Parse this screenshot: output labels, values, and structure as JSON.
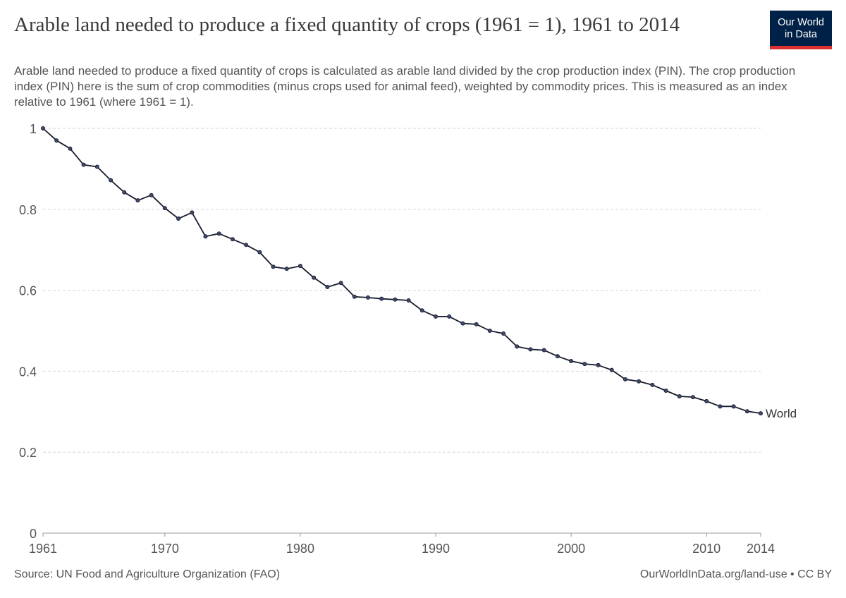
{
  "header": {
    "title": "Arable land needed to produce a fixed quantity of crops (1961 = 1), 1961 to 2014",
    "subtitle": "Arable land needed to produce a fixed quantity of crops is calculated as arable land divided by the crop production index (PIN). The crop production index (PIN) here is the sum of crop commodities (minus crops used for animal feed), weighted by commodity prices. This is measured as an index relative to 1961 (where 1961 = 1)."
  },
  "logo": {
    "line1": "Our World",
    "line2": "in Data",
    "bg_color": "#002147",
    "accent_color": "#dc2f2f"
  },
  "footer": {
    "source": "Source: UN Food and Agriculture Organization (FAO)",
    "license": "OurWorldInData.org/land-use • CC BY"
  },
  "chart_data": {
    "type": "line",
    "title": "",
    "xlabel": "",
    "ylabel": "",
    "xlim": [
      1961,
      2014
    ],
    "ylim": [
      0,
      1
    ],
    "x_ticks": [
      1961,
      1970,
      1980,
      1990,
      2000,
      2010,
      2014
    ],
    "y_ticks": [
      "0",
      "0.2",
      "0.4",
      "0.6",
      "0.8",
      "1"
    ],
    "y_tick_values": [
      0,
      0.2,
      0.4,
      0.6,
      0.8,
      1
    ],
    "grid": "horizontal-dashed",
    "line_color": "#1a1a2e",
    "series": [
      {
        "name": "World",
        "x": [
          1961,
          1962,
          1963,
          1964,
          1965,
          1966,
          1967,
          1968,
          1969,
          1970,
          1971,
          1972,
          1973,
          1974,
          1975,
          1976,
          1977,
          1978,
          1979,
          1980,
          1981,
          1982,
          1983,
          1984,
          1985,
          1986,
          1987,
          1988,
          1989,
          1990,
          1991,
          1992,
          1993,
          1994,
          1995,
          1996,
          1997,
          1998,
          1999,
          2000,
          2001,
          2002,
          2003,
          2004,
          2005,
          2006,
          2007,
          2008,
          2009,
          2010,
          2011,
          2012,
          2013,
          2014
        ],
        "values": [
          1.0,
          0.97,
          0.95,
          0.91,
          0.905,
          0.872,
          0.842,
          0.822,
          0.835,
          0.803,
          0.777,
          0.792,
          0.733,
          0.74,
          0.726,
          0.712,
          0.694,
          0.658,
          0.653,
          0.66,
          0.631,
          0.608,
          0.618,
          0.584,
          0.582,
          0.579,
          0.577,
          0.575,
          0.55,
          0.535,
          0.535,
          0.518,
          0.516,
          0.5,
          0.493,
          0.461,
          0.454,
          0.452,
          0.437,
          0.425,
          0.418,
          0.415,
          0.403,
          0.38,
          0.375,
          0.366,
          0.352,
          0.338,
          0.336,
          0.326,
          0.313,
          0.313,
          0.301,
          0.296
        ]
      }
    ]
  }
}
